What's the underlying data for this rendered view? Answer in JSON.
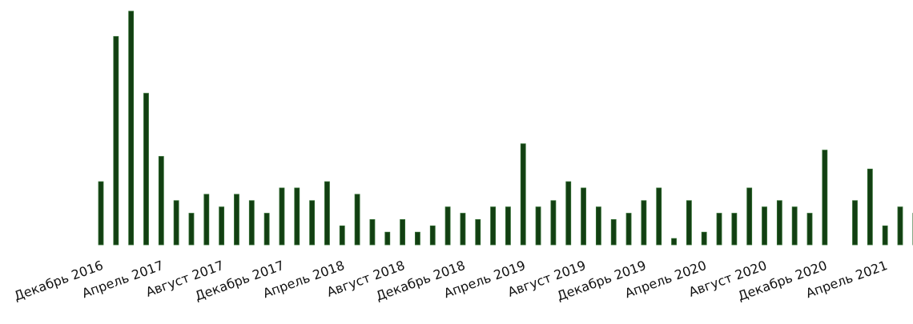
{
  "chart_data": {
    "type": "bar",
    "categories": [
      "Декабрь 2016",
      null,
      null,
      null,
      "Апрель 2017",
      null,
      null,
      null,
      "Август 2017",
      null,
      null,
      null,
      "Декабрь 2017",
      null,
      null,
      null,
      "Апрель 2018",
      null,
      null,
      null,
      "Август 2018",
      null,
      null,
      null,
      "Декабрь 2018",
      null,
      null,
      null,
      "Апрель 2019",
      null,
      null,
      null,
      "Август 2019",
      null,
      null,
      null,
      "Декабрь 2019",
      null,
      null,
      null,
      "Апрель 2020",
      null,
      null,
      null,
      "Август 2020",
      null,
      null,
      null,
      "Декабрь 2020",
      null,
      null,
      null,
      "Апрель 2021",
      null,
      null
    ],
    "values": [
      10,
      33,
      37,
      24,
      14,
      7,
      5,
      8,
      6,
      8,
      7,
      5,
      9,
      9,
      7,
      10,
      3,
      8,
      4,
      2,
      4,
      2,
      3,
      6,
      5,
      4,
      6,
      6,
      16,
      6,
      7,
      10,
      9,
      6,
      4,
      5,
      7,
      9,
      1,
      7,
      2,
      5,
      5,
      9,
      6,
      7,
      6,
      5,
      15,
      0,
      7,
      12,
      3,
      6,
      5
    ],
    "color": "#123f12",
    "ylim": [
      0,
      37
    ]
  }
}
